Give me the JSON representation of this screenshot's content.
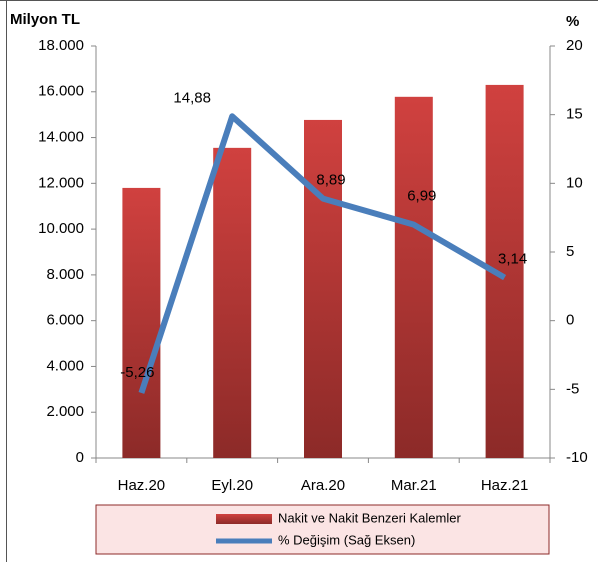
{
  "chart_data": {
    "type": "bar_line",
    "left_axis_label": "Milyon TL",
    "right_axis_label": "%",
    "categories": [
      "Haz.20",
      "Eyl.20",
      "Ara.20",
      "Mar.21",
      "Haz.21"
    ],
    "series": [
      {
        "name": "Nakit ve Nakit Benzeri Kalemler",
        "type": "bar",
        "color": "#d0413f",
        "values": [
          11800,
          13550,
          14770,
          15780,
          16300
        ]
      },
      {
        "name": "% Değişim (Sağ Eksen)",
        "type": "line",
        "axis": "y2",
        "color": "#4a7ebb",
        "values": [
          -5.26,
          14.88,
          8.89,
          6.99,
          3.14
        ],
        "value_labels": [
          "-5,26",
          "14,88",
          "8,89",
          "6,99",
          "3,14"
        ]
      }
    ],
    "ylim": [
      0,
      18000
    ],
    "yticks": [
      0,
      {
        "value": 2000,
        "label": "2.000"
      },
      {
        "value": 4000,
        "label": "4.000"
      },
      {
        "value": 6000,
        "label": "6.000"
      },
      {
        "value": 8000,
        "label": "8.000"
      },
      {
        "value": 10000,
        "label": "10.000"
      },
      {
        "value": 12000,
        "label": "12.000"
      },
      {
        "value": 14000,
        "label": "14.000"
      },
      {
        "value": 16000,
        "label": "16.000"
      },
      {
        "value": 18000,
        "label": "18.000"
      }
    ],
    "y2lim": [
      -10,
      20
    ],
    "y2ticks": [
      -10,
      -5,
      0,
      5,
      10,
      15,
      20
    ]
  }
}
